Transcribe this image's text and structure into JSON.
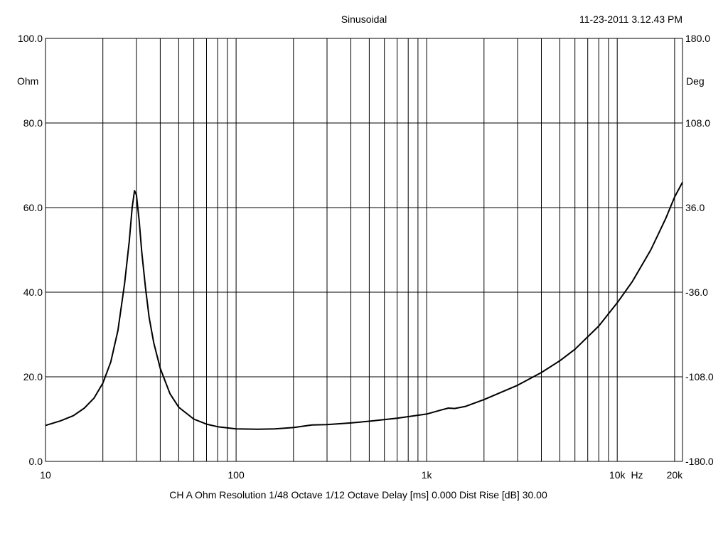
{
  "header": {
    "title": "Sinusoidal",
    "timestamp": "11-23-2011 3.12.43 PM"
  },
  "footer": {
    "info": "CH A   Ohm   Resolution 1/48 Octave   1/12 Octave   Delay [ms] 0.000   Dist Rise [dB] 30.00"
  },
  "chart_data": {
    "type": "line",
    "xscale": "log",
    "xlim": [
      10,
      22000
    ],
    "ylim": [
      0,
      100
    ],
    "y2lim": [
      -180,
      180
    ],
    "ylabel": "Ohm",
    "y2label": "Deg",
    "xunit": "Hz",
    "grid": true,
    "x_tick_labels": [
      {
        "value": 10,
        "label": "10"
      },
      {
        "value": 100,
        "label": "100"
      },
      {
        "value": 1000,
        "label": "1k"
      },
      {
        "value": 10000,
        "label": "10k"
      },
      {
        "value": 20000,
        "label": "20k"
      }
    ],
    "y_ticks": [
      0,
      20,
      40,
      60,
      80,
      100
    ],
    "y_tick_labels": [
      "0.0",
      "20.0",
      "40.0",
      "60.0",
      "80.0",
      "100.0"
    ],
    "y2_tick_labels": [
      "-180.0",
      "-108.0",
      "-36.0",
      "36.0",
      "108.0",
      "180.0"
    ],
    "series": [
      {
        "color": "#000000",
        "points": [
          [
            10,
            8.5
          ],
          [
            12,
            9.6
          ],
          [
            14,
            10.8
          ],
          [
            16,
            12.6
          ],
          [
            18,
            15.0
          ],
          [
            20,
            18.5
          ],
          [
            22,
            23.5
          ],
          [
            24,
            31.0
          ],
          [
            26,
            42.0
          ],
          [
            27.5,
            52.0
          ],
          [
            28.5,
            60.0
          ],
          [
            29.3,
            64.0
          ],
          [
            30,
            63.0
          ],
          [
            31,
            57.0
          ],
          [
            32,
            49.5
          ],
          [
            33.5,
            41.0
          ],
          [
            35,
            34.0
          ],
          [
            37,
            28.0
          ],
          [
            40,
            22.0
          ],
          [
            45,
            16.0
          ],
          [
            50,
            12.8
          ],
          [
            60,
            10.0
          ],
          [
            70,
            8.8
          ],
          [
            80,
            8.2
          ],
          [
            100,
            7.7
          ],
          [
            130,
            7.6
          ],
          [
            160,
            7.7
          ],
          [
            200,
            8.0
          ],
          [
            250,
            8.6
          ],
          [
            300,
            8.7
          ],
          [
            400,
            9.1
          ],
          [
            500,
            9.5
          ],
          [
            700,
            10.2
          ],
          [
            1000,
            11.2
          ],
          [
            1200,
            12.2
          ],
          [
            1300,
            12.6
          ],
          [
            1400,
            12.5
          ],
          [
            1600,
            13.0
          ],
          [
            2000,
            14.6
          ],
          [
            3000,
            18.0
          ],
          [
            4000,
            21.0
          ],
          [
            5000,
            23.8
          ],
          [
            6000,
            26.5
          ],
          [
            8000,
            32.0
          ],
          [
            10000,
            37.5
          ],
          [
            12000,
            42.5
          ],
          [
            15000,
            50.0
          ],
          [
            18000,
            57.5
          ],
          [
            20000,
            62.5
          ],
          [
            22000,
            66.0
          ]
        ]
      }
    ]
  }
}
